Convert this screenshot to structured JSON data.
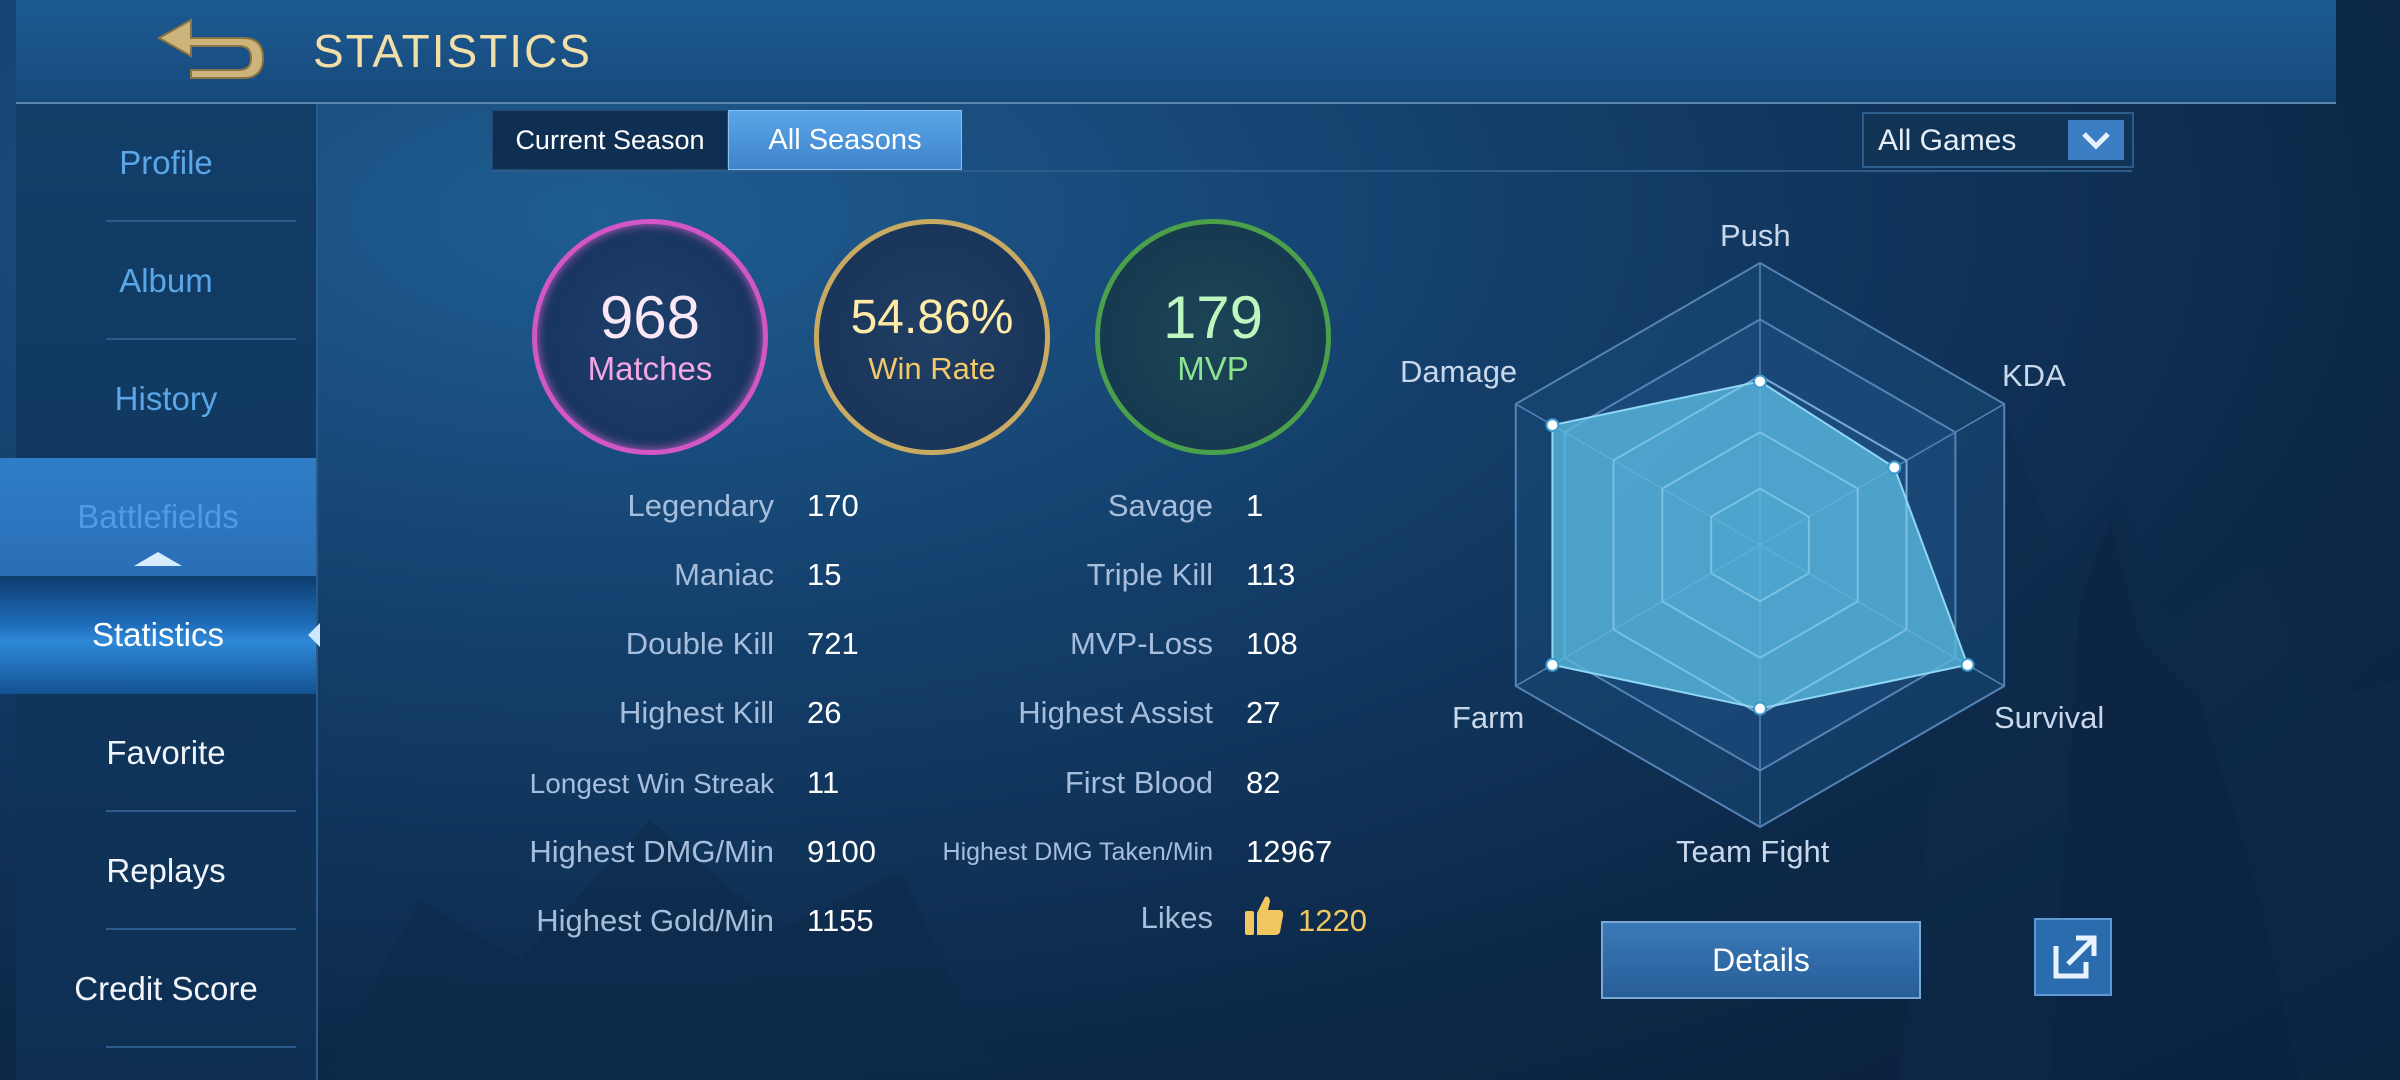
{
  "header": {
    "title": "STATISTICS"
  },
  "sidebar": {
    "items": [
      {
        "label": "Profile"
      },
      {
        "label": "Album"
      },
      {
        "label": "History"
      },
      {
        "label": "Battlefields"
      },
      {
        "label": "Statistics"
      },
      {
        "label": "Favorite"
      },
      {
        "label": "Replays"
      },
      {
        "label": "Credit Score"
      }
    ]
  },
  "tabs": [
    {
      "label": "Current Season",
      "selected": false
    },
    {
      "label": "All Seasons",
      "selected": true
    }
  ],
  "filter": {
    "selected": "All Games"
  },
  "summary": {
    "matches": {
      "value": "968",
      "label": "Matches"
    },
    "win_rate": {
      "value": "54.86%",
      "label": "Win Rate"
    },
    "mvp": {
      "value": "179",
      "label": "MVP"
    }
  },
  "stats_left": [
    {
      "label": "Legendary",
      "value": "170"
    },
    {
      "label": "Maniac",
      "value": "15"
    },
    {
      "label": "Double Kill",
      "value": "721"
    },
    {
      "label": "Highest Kill",
      "value": "26"
    },
    {
      "label": "Longest Win Streak",
      "value": "11"
    },
    {
      "label": "Highest DMG/Min",
      "value": "9100"
    },
    {
      "label": "Highest Gold/Min",
      "value": "1155"
    }
  ],
  "stats_right": [
    {
      "label": "Savage",
      "value": "1"
    },
    {
      "label": "Triple Kill",
      "value": "113"
    },
    {
      "label": "MVP-Loss",
      "value": "108"
    },
    {
      "label": "Highest Assist",
      "value": "27"
    },
    {
      "label": "First Blood",
      "value": "82"
    },
    {
      "label": "Highest DMG Taken/Min",
      "value": "12967"
    },
    {
      "label": "Likes",
      "value": "1220"
    }
  ],
  "radar": {
    "axes": [
      "Push",
      "KDA",
      "Survival",
      "Team Fight",
      "Farm",
      "Damage"
    ],
    "values": [
      0.58,
      0.55,
      0.85,
      0.58,
      0.85,
      0.85
    ]
  },
  "buttons": {
    "details": "Details"
  },
  "icons": {
    "back": "back-arrow-icon",
    "dropdown": "chevron-down-icon",
    "likes": "thumbs-up-icon",
    "share": "share-external-icon"
  },
  "colors": {
    "matches": "#d257c4",
    "win_rate": "#c8aa62",
    "mvp": "#4aa04b",
    "radar_fill": "#5bbbe0",
    "title": "#f2dfa8"
  }
}
